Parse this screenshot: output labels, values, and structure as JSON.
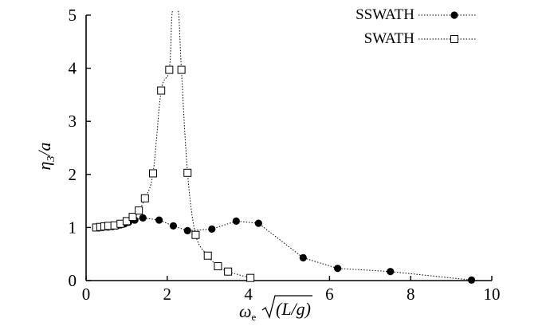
{
  "chart_data": {
    "type": "line",
    "title": "",
    "xlabel": "ωe√(L/g)",
    "ylabel": "η3/a",
    "xlim": [
      0,
      10
    ],
    "ylim": [
      0,
      5
    ],
    "xticks": [
      "0",
      "2",
      "4",
      "6",
      "8",
      "10"
    ],
    "yticks": [
      "0",
      "1",
      "2",
      "3",
      "4",
      "5"
    ],
    "grid": false,
    "legend_position": "top-right",
    "series": [
      {
        "name": "SSWATH",
        "marker": "filled-circle",
        "line": "dotted",
        "color": "#000000",
        "x": [
          0.55,
          0.65,
          0.75,
          0.85,
          0.95,
          1.05,
          1.2,
          1.4,
          1.8,
          2.15,
          2.5,
          3.1,
          3.7,
          4.25,
          5.35,
          6.2,
          7.5,
          9.5
        ],
        "y": [
          1.01,
          1.02,
          1.03,
          1.05,
          1.07,
          1.1,
          1.14,
          1.18,
          1.14,
          1.03,
          0.94,
          0.97,
          1.12,
          1.08,
          0.43,
          0.23,
          0.17,
          0.01
        ]
      },
      {
        "name": "SWATH",
        "marker": "open-square",
        "line": "dotted",
        "color": "#000000",
        "x": [
          0.25,
          0.35,
          0.45,
          0.55,
          0.7,
          0.85,
          1.0,
          1.15,
          1.3,
          1.45,
          1.65,
          1.85,
          2.05,
          2.35,
          2.5,
          2.7,
          3.0,
          3.25,
          3.5,
          4.05
        ],
        "y": [
          1.0,
          1.01,
          1.02,
          1.03,
          1.04,
          1.07,
          1.12,
          1.2,
          1.32,
          1.55,
          2.02,
          3.58,
          3.97,
          3.97,
          2.03,
          0.86,
          0.47,
          0.27,
          0.17,
          0.05
        ]
      }
    ]
  },
  "legend": {
    "sswath": "SSWATH",
    "swath": "SWATH"
  },
  "axes": {
    "ylabel_eta": "η",
    "ylabel_sub": "3",
    "ylabel_rest": "/a",
    "xlabel_omega": "ω",
    "xlabel_sub": "e",
    "xlabel_arg": "(L/g)"
  }
}
